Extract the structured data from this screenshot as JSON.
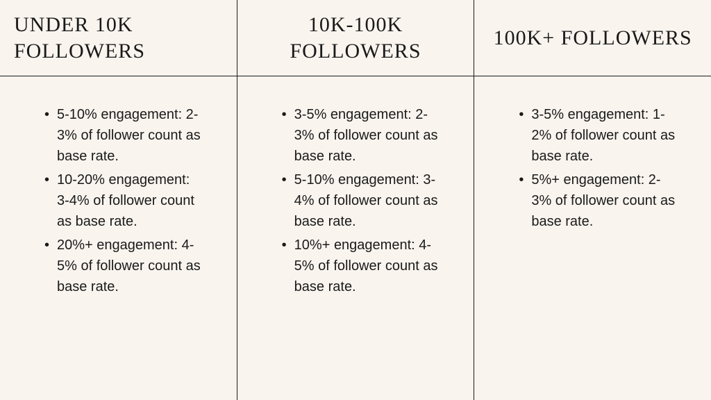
{
  "background_color": "#f9f4ee",
  "border_color": "#1a1a1a",
  "text_color": "#1a1a1a",
  "header_font": "Didot, Bodoni MT, Georgia, serif",
  "body_font": "-apple-system, Segoe UI, Helvetica Neue, Arial, sans-serif",
  "header_fontsize": 30,
  "body_fontsize": 20,
  "columns": [
    {
      "title": "UNDER 10K FOLLOWERS",
      "items": [
        "5-10% engagement: 2-3% of follower count as base rate.",
        "10-20% engagement: 3-4% of follower count as base rate.",
        "20%+ engagement: 4-5% of follower count as base rate."
      ]
    },
    {
      "title": "10K-100K FOLLOWERS",
      "items": [
        "3-5% engagement: 2-3% of follower count as base rate.",
        "5-10% engagement: 3-4% of follower count as base rate.",
        "10%+ engagement: 4-5% of follower count as base rate."
      ]
    },
    {
      "title": "100K+ FOLLOWERS",
      "items": [
        "3-5% engagement: 1-2% of follower count as base rate.",
        "5%+ engagement: 2-3% of follower count as base rate."
      ]
    }
  ]
}
